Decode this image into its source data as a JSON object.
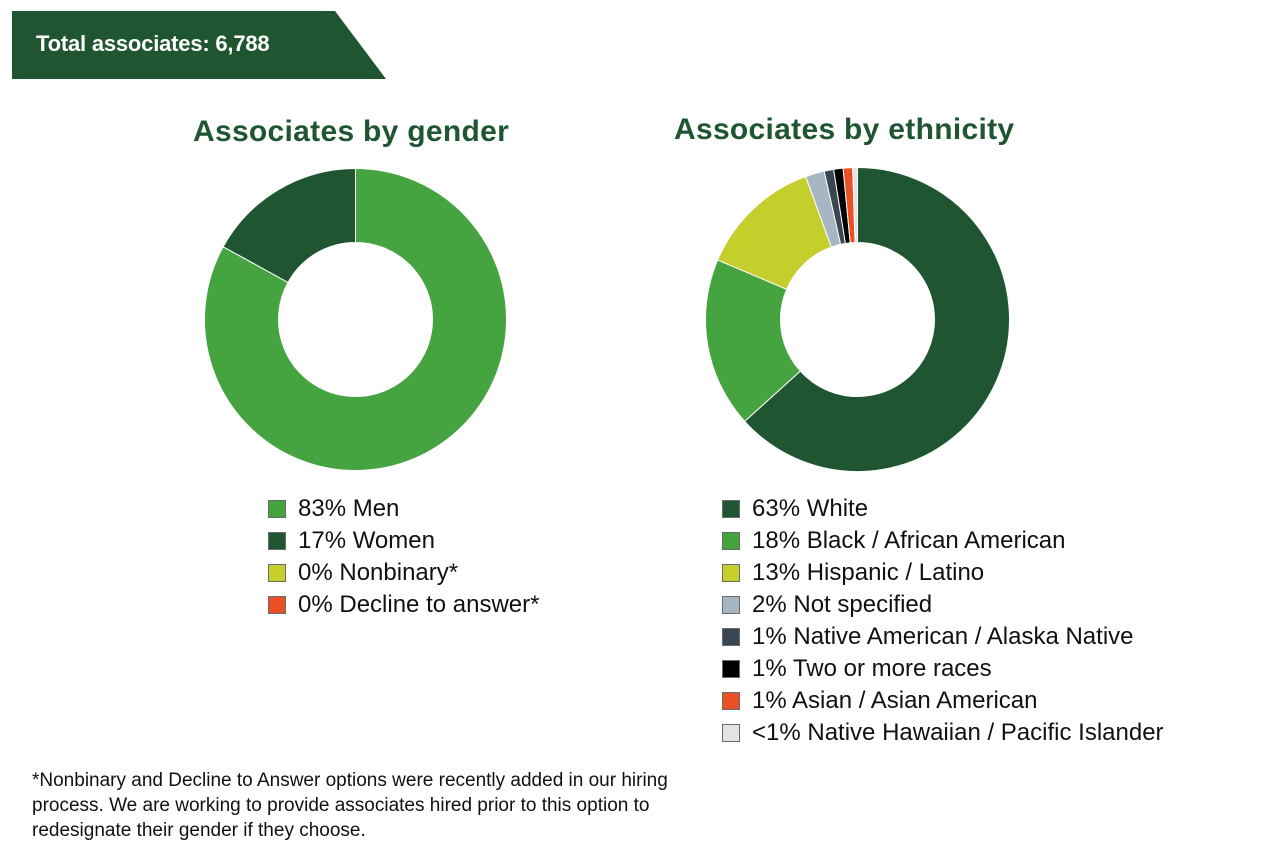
{
  "header": {
    "total_label": "Total associates: 6,788",
    "banner_color": "#1f5530"
  },
  "footnote": "*Nonbinary and Decline to Answer options were recently added in our hiring process. We are working to provide associates hired prior to this option to redesignate their gender if they choose.",
  "chart_data": [
    {
      "type": "pie",
      "variant": "donut",
      "title": "Associates by gender",
      "start": "top",
      "direction": "clockwise",
      "series": [
        {
          "label": "83% Men",
          "value": 83,
          "color": "#45a340"
        },
        {
          "label": "17% Women",
          "value": 17,
          "color": "#1f5530"
        },
        {
          "label": "0% Nonbinary*",
          "value": 0,
          "color": "#c4cf2c"
        },
        {
          "label": "0% Decline to answer*",
          "value": 0,
          "color": "#ea4f25"
        }
      ],
      "legend": "below"
    },
    {
      "type": "pie",
      "variant": "donut",
      "title": "Associates by ethnicity",
      "start": "top",
      "direction": "clockwise",
      "series": [
        {
          "label": "63% White",
          "value": 63,
          "color": "#1f5530"
        },
        {
          "label": "18% Black / African American",
          "value": 18,
          "color": "#45a340"
        },
        {
          "label": "13% Hispanic / Latino",
          "value": 13,
          "color": "#c4cf2c"
        },
        {
          "label": "2% Not specified",
          "value": 2,
          "color": "#a6b6c2"
        },
        {
          "label": "1% Native American / Alaska Native",
          "value": 1,
          "color": "#3a4752"
        },
        {
          "label": "1% Two or more races",
          "value": 1,
          "color": "#000000"
        },
        {
          "label": "1% Asian / Asian American",
          "value": 1,
          "color": "#ea4f25"
        },
        {
          "label": "<1% Native Hawaiian / Pacific Islander",
          "value": 0.5,
          "color": "#e3e3e3"
        }
      ],
      "legend": "below"
    }
  ]
}
